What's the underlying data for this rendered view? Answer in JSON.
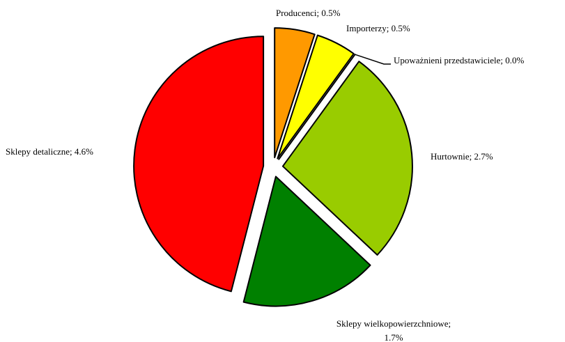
{
  "chart_data": {
    "type": "pie",
    "labels": [
      [
        "Producenci; 0.5%"
      ],
      [
        "Importerzy; 0.5%"
      ],
      [
        "Upoważnieni przedstawiciele; 0.0%"
      ],
      [
        "Hurtownie; 2.7%"
      ],
      [
        "Sklepy wielkopowierzchniowe;",
        "1.7%"
      ],
      [
        "Sklepy detaliczne; 4.6%"
      ]
    ],
    "values": [
      0.5,
      0.5,
      0.0,
      2.7,
      1.7,
      4.6
    ],
    "colors": [
      "#ff9900",
      "#ffff00",
      "#ffff99",
      "#99cc00",
      "#008000",
      "#ff0000"
    ]
  }
}
